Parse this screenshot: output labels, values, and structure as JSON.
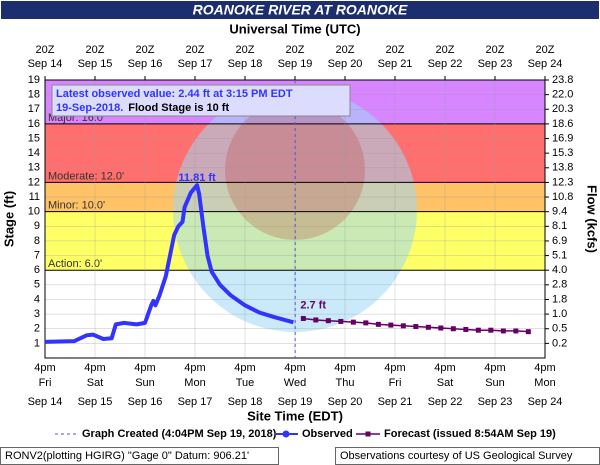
{
  "chart_data": {
    "type": "hydrograph",
    "title": "ROANOKE RIVER AT ROANOKE",
    "x2_label": "Universal Time (UTC)",
    "x_label": "Site Time (EDT)",
    "y_label": "Stage (ft)",
    "y2_label": "Flow (kcfs)",
    "annotation": {
      "line1": "Latest observed value: 2.44 ft at 3:15 PM EDT",
      "date": "19-Sep-2018.",
      "flood_stage": "Flood Stage is 10 ft"
    },
    "xlim": [
      "Sep 14 16:00",
      "Sep 24 16:00"
    ],
    "ylim": [
      0,
      19
    ],
    "yticks": [
      1,
      2,
      3,
      4,
      5,
      6,
      7,
      8,
      9,
      10,
      11,
      12,
      13,
      14,
      15,
      16,
      17,
      18,
      19
    ],
    "y2ticks": [
      0.2,
      0.5,
      {
        "value": 1,
        "label": "1.0"
      },
      1.8,
      2.8,
      {
        "value": 4,
        "label": "4.0"
      },
      5.1,
      6.9,
      8.1,
      9.4,
      10.8,
      12.3,
      13.8,
      15.3,
      16.9,
      18.6,
      20.3,
      {
        "value": 22,
        "label": "22.0"
      },
      23.8
    ],
    "xticks": [
      {
        "value": "Sep 14 16:00",
        "label": "4pm",
        "weekday": "Fri",
        "date": "Sep 14"
      },
      {
        "value": "Sep 15 16:00",
        "label": "4pm",
        "weekday": "Sat",
        "date": "Sep 15"
      },
      {
        "value": "Sep 16 16:00",
        "label": "4pm",
        "weekday": "Sun",
        "date": "Sep 16"
      },
      {
        "value": "Sep 17 16:00",
        "label": "4pm",
        "weekday": "Mon",
        "date": "Sep 17"
      },
      {
        "value": "Sep 18 16:00",
        "label": "4pm",
        "weekday": "Tue",
        "date": "Sep 18"
      },
      {
        "value": "Sep 19 16:00",
        "label": "4pm",
        "weekday": "Wed",
        "date": "Sep 19"
      },
      {
        "value": "Sep 20 16:00",
        "label": "4pm",
        "weekday": "Thu",
        "date": "Sep 20"
      },
      {
        "value": "Sep 21 16:00",
        "label": "4pm",
        "weekday": "Fri",
        "date": "Sep 21"
      },
      {
        "value": "Sep 22 16:00",
        "label": "4pm",
        "weekday": "Sat",
        "date": "Sep 22"
      },
      {
        "value": "Sep 23 16:00",
        "label": "4pm",
        "weekday": "Sun",
        "date": "Sep 23"
      },
      {
        "value": "Sep 24 16:00",
        "label": "4pm",
        "weekday": "Mon",
        "date": "Sep 24"
      }
    ],
    "x2ticks": [
      {
        "value": "Sep 14 16:00",
        "label": "20Z",
        "date": "Sep 14"
      },
      {
        "value": "Sep 15 16:00",
        "label": "20Z",
        "date": "Sep 15"
      },
      {
        "value": "Sep 16 16:00",
        "label": "20Z",
        "date": "Sep 16"
      },
      {
        "value": "Sep 17 16:00",
        "label": "20Z",
        "date": "Sep 17"
      },
      {
        "value": "Sep 18 16:00",
        "label": "20Z",
        "date": "Sep 18"
      },
      {
        "value": "Sep 19 16:00",
        "label": "20Z",
        "date": "Sep 19"
      },
      {
        "value": "Sep 20 16:00",
        "label": "20Z",
        "date": "Sep 20"
      },
      {
        "value": "Sep 21 16:00",
        "label": "20Z",
        "date": "Sep 21"
      },
      {
        "value": "Sep 22 16:00",
        "label": "20Z",
        "date": "Sep 22"
      },
      {
        "value": "Sep 23 16:00",
        "label": "20Z",
        "date": "Sep 23"
      },
      {
        "value": "Sep 24 16:00",
        "label": "20Z",
        "date": "Sep 24"
      }
    ],
    "grid": true,
    "flood_categories": [
      {
        "label": "Action: 6.0'",
        "value": 6,
        "color": "#ffff66"
      },
      {
        "label": "Minor: 10.0'",
        "value": 10,
        "color": "#ffc266"
      },
      {
        "label": "Moderate: 12.0'",
        "value": 12,
        "color": "#ff6f6f"
      },
      {
        "label": "Major: 16.0'",
        "value": 16,
        "color": "#d886ff"
      }
    ],
    "series": [
      {
        "name": "Observed",
        "color": "#3333ff",
        "x": [
          "Sep 14 16:00",
          "Sep 15 06:00",
          "Sep 15 12:00",
          "Sep 15 15:00",
          "Sep 15 20:00",
          "Sep 16 00:00",
          "Sep 16 02:00",
          "Sep 16 06:00",
          "Sep 16 12:00",
          "Sep 16 16:00",
          "Sep 16 19:00",
          "Sep 16 20:00",
          "Sep 16 21:00",
          "Sep 16 23:00",
          "Sep 17 02:00",
          "Sep 17 04:00",
          "Sep 17 06:00",
          "Sep 17 08:00",
          "Sep 17 10:00",
          "Sep 17 11:00",
          "Sep 17 14:00",
          "Sep 17 17:00",
          "Sep 17 18:00",
          "Sep 17 20:00",
          "Sep 17 22:00",
          "Sep 18 00:00",
          "Sep 18 04:00",
          "Sep 18 09:00",
          "Sep 18 16:00",
          "Sep 18 23:00",
          "Sep 19 06:00",
          "Sep 19 15:15"
        ],
        "values": [
          1.1,
          1.15,
          1.55,
          1.6,
          1.3,
          1.35,
          2.3,
          2.4,
          2.3,
          2.4,
          3.6,
          3.9,
          3.6,
          4.3,
          5.6,
          7.0,
          8.4,
          9.0,
          9.3,
          10.3,
          11.3,
          11.81,
          11.2,
          9.0,
          7.0,
          5.9,
          5.0,
          4.3,
          3.6,
          3.1,
          2.8,
          2.44
        ]
      },
      {
        "name": "Forecast (issued 8:54AM Sep 19)",
        "color": "#660066",
        "x": [
          "Sep 19 20:00",
          "Sep 20 02:00",
          "Sep 20 08:00",
          "Sep 20 14:00",
          "Sep 20 20:00",
          "Sep 21 02:00",
          "Sep 21 08:00",
          "Sep 21 14:00",
          "Sep 21 20:00",
          "Sep 22 02:00",
          "Sep 22 08:00",
          "Sep 22 14:00",
          "Sep 22 20:00",
          "Sep 23 02:00",
          "Sep 23 08:00",
          "Sep 23 14:00",
          "Sep 23 20:00",
          "Sep 24 02:00",
          "Sep 24 08:00"
        ],
        "values": [
          2.7,
          2.6,
          2.55,
          2.5,
          2.45,
          2.4,
          2.3,
          2.25,
          2.2,
          2.15,
          2.1,
          2.05,
          2.0,
          1.95,
          1.9,
          1.9,
          1.85,
          1.85,
          1.8
        ]
      }
    ],
    "peak_label": {
      "text": "11.81 ft",
      "x": "Sep 17 17:00",
      "y": 11.81
    },
    "forecast_label": {
      "text": "2.7 ft",
      "x": "Sep 19 20:00",
      "y": 2.7
    },
    "created_line": {
      "name": "Graph Created (4:04PM Sep 19, 2018)",
      "x": "Sep 19 16:04",
      "color": "#5555cc"
    },
    "footer_left": "RONV2(plotting HGIRG) \"Gage 0\" Datum: 906.21'",
    "footer_right": "Observations courtesy of US Geological Survey"
  }
}
